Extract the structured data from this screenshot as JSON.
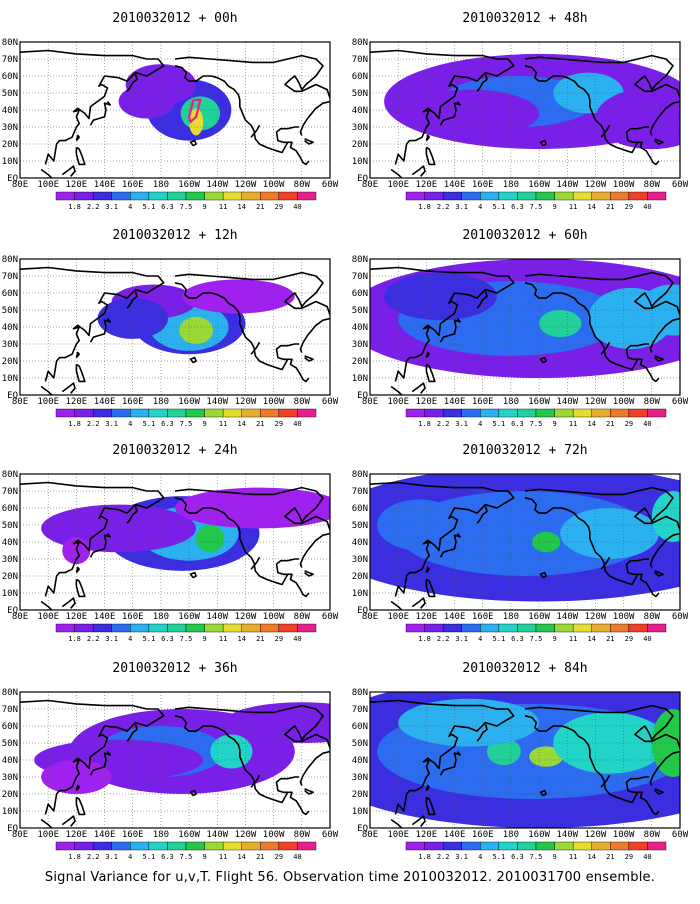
{
  "caption": "Signal Variance for u,v,T. Flight 56. Observation time 2010032012. 2010031700 ensemble.",
  "x_tick_labels": [
    "80E",
    "100E",
    "120E",
    "140E",
    "160E",
    "180",
    "160W",
    "140W",
    "120W",
    "100W",
    "80W",
    "60W"
  ],
  "y_tick_labels": [
    "EQ",
    "10N",
    "20N",
    "30N",
    "40N",
    "50N",
    "60N",
    "70N",
    "80N"
  ],
  "colorbar": {
    "labels": [
      "1.8",
      "2.2",
      "3.1",
      "4",
      "5.1",
      "6.3",
      "7.5",
      "9",
      "11",
      "14",
      "21",
      "29",
      "40"
    ],
    "colors": [
      "#a020f0",
      "#7a1fe8",
      "#3a2ee0",
      "#2b6cf0",
      "#2bb0f0",
      "#22d4c8",
      "#22d09a",
      "#22c84a",
      "#9ad838",
      "#e6dc32",
      "#e6ae2e",
      "#ee7a2a",
      "#f0402a",
      "#e8208c"
    ]
  },
  "panels": [
    {
      "title": "2010032012 + 00h",
      "blobs": [
        [
          200,
          40,
          30,
          18,
          2
        ],
        [
          208,
          38,
          14,
          10,
          6
        ],
        [
          205,
          33,
          5,
          8,
          9
        ],
        [
          180,
          55,
          25,
          12,
          1
        ],
        [
          170,
          45,
          20,
          10,
          1
        ]
      ],
      "marker": true
    },
    {
      "title": "2010032012 + 12h",
      "blobs": [
        [
          200,
          42,
          40,
          18,
          2
        ],
        [
          200,
          40,
          28,
          14,
          4
        ],
        [
          205,
          38,
          12,
          8,
          8
        ],
        [
          175,
          55,
          30,
          10,
          1
        ],
        [
          235,
          58,
          40,
          10,
          0
        ],
        [
          160,
          45,
          25,
          12,
          2
        ]
      ],
      "marker": false
    },
    {
      "title": "2010032012 + 24h",
      "blobs": [
        [
          195,
          45,
          55,
          22,
          2
        ],
        [
          200,
          45,
          35,
          16,
          4
        ],
        [
          215,
          42,
          10,
          8,
          7
        ],
        [
          150,
          48,
          55,
          14,
          1
        ],
        [
          250,
          60,
          60,
          12,
          0
        ],
        [
          120,
          35,
          10,
          8,
          0
        ]
      ],
      "marker": false
    },
    {
      "title": "2010032012 + 36h",
      "blobs": [
        [
          195,
          45,
          80,
          25,
          1
        ],
        [
          180,
          45,
          45,
          15,
          3
        ],
        [
          230,
          45,
          15,
          10,
          5
        ],
        [
          150,
          40,
          60,
          12,
          1
        ],
        [
          280,
          62,
          55,
          12,
          1
        ],
        [
          120,
          30,
          25,
          10,
          0
        ]
      ],
      "marker": false
    },
    {
      "title": "2010032012 + 48h",
      "blobs": [
        [
          200,
          45,
          110,
          28,
          1
        ],
        [
          185,
          45,
          55,
          15,
          3
        ],
        [
          175,
          42,
          8,
          6,
          6
        ],
        [
          235,
          50,
          25,
          12,
          4
        ],
        [
          280,
          35,
          40,
          18,
          1
        ],
        [
          150,
          38,
          50,
          14,
          1
        ]
      ],
      "marker": false
    },
    {
      "title": "2010032012 + 60h",
      "blobs": [
        [
          200,
          45,
          140,
          35,
          1
        ],
        [
          180,
          45,
          80,
          22,
          3
        ],
        [
          215,
          42,
          15,
          8,
          6
        ],
        [
          265,
          45,
          30,
          18,
          4
        ],
        [
          295,
          50,
          25,
          15,
          4
        ],
        [
          130,
          58,
          40,
          14,
          2
        ]
      ],
      "marker": false
    },
    {
      "title": "2010032012 + 72h",
      "blobs": [
        [
          200,
          45,
          160,
          40,
          2
        ],
        [
          190,
          45,
          90,
          25,
          3
        ],
        [
          205,
          40,
          10,
          6,
          7
        ],
        [
          250,
          45,
          35,
          15,
          4
        ],
        [
          295,
          55,
          15,
          15,
          5
        ],
        [
          115,
          50,
          30,
          15,
          3
        ]
      ],
      "marker": false
    },
    {
      "title": "2010032012 + 84h",
      "blobs": [
        [
          200,
          45,
          170,
          45,
          2
        ],
        [
          195,
          45,
          110,
          28,
          3
        ],
        [
          205,
          42,
          12,
          6,
          8
        ],
        [
          175,
          45,
          12,
          8,
          6
        ],
        [
          250,
          50,
          40,
          18,
          5
        ],
        [
          295,
          50,
          15,
          20,
          7
        ],
        [
          150,
          62,
          50,
          14,
          4
        ]
      ],
      "marker": false
    }
  ]
}
